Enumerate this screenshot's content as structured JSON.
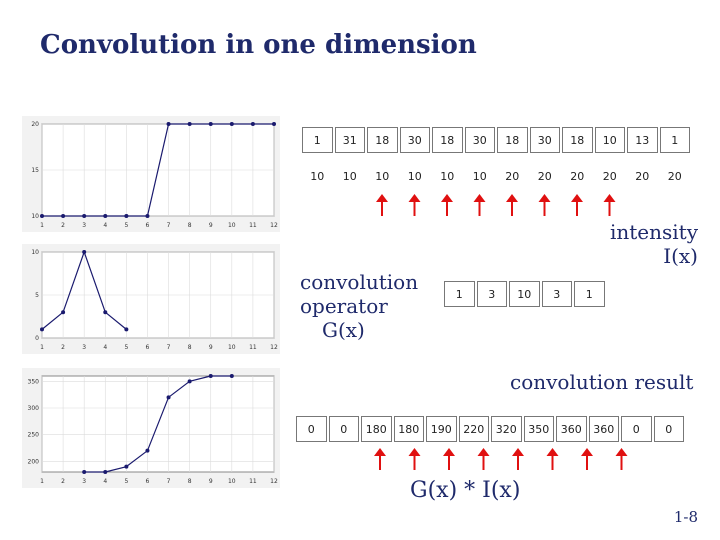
{
  "slide": {
    "title": "Convolution in one dimension",
    "page_number": "1-8"
  },
  "labels": {
    "intensity_line1": "intensity",
    "intensity_line2": "I(x)",
    "operator_line1": "convolution",
    "operator_line2": "operator",
    "operator_line3": "G(x)",
    "result_label": "convolution result",
    "result_formula": "G(x) * I(x)"
  },
  "intensity_row1": [
    "1",
    "31",
    "18",
    "30",
    "18",
    "30",
    "18",
    "30",
    "18",
    "10",
    "13",
    "1"
  ],
  "intensity_row2": [
    "10",
    "10",
    "10",
    "10",
    "10",
    "10",
    "20",
    "20",
    "20",
    "20",
    "20",
    "20"
  ],
  "operator_values": [
    "1",
    "3",
    "10",
    "3",
    "1"
  ],
  "result_values": [
    "0",
    "0",
    "180",
    "180",
    "190",
    "220",
    "320",
    "350",
    "360",
    "360",
    "0",
    "0"
  ],
  "colors": {
    "title": "#1f2a6b",
    "arrow": "#e01010",
    "plot_line": "#1a1a6e"
  },
  "chart_data": [
    {
      "type": "line",
      "x": [
        1,
        2,
        3,
        4,
        5,
        6,
        7,
        8,
        9,
        10,
        11,
        12
      ],
      "series": [
        {
          "values": [
            10,
            10,
            10,
            10,
            10,
            10,
            20,
            20,
            20,
            20,
            20,
            20
          ]
        }
      ],
      "xlim": [
        1,
        12
      ],
      "ylim": [
        10,
        20
      ],
      "yticks": [
        "10",
        "15",
        "20"
      ],
      "xticks": [
        "1",
        "2",
        "3",
        "4",
        "5",
        "6",
        "7",
        "8",
        "9",
        "10",
        "11",
        "12"
      ],
      "grid": true
    },
    {
      "type": "line",
      "x": [
        1,
        2,
        3,
        4,
        5
      ],
      "series": [
        {
          "values": [
            1,
            3,
            10,
            3,
            1
          ]
        }
      ],
      "xlim": [
        1,
        12
      ],
      "ylim": [
        0,
        10
      ],
      "yticks": [
        "0",
        "5",
        "10"
      ],
      "xticks": [
        "1",
        "2",
        "3",
        "4",
        "5",
        "6",
        "7",
        "8",
        "9",
        "10",
        "11",
        "12"
      ],
      "grid": true
    },
    {
      "type": "line",
      "x": [
        3,
        4,
        5,
        6,
        7,
        8,
        9,
        10
      ],
      "series": [
        {
          "values": [
            180,
            180,
            190,
            220,
            320,
            350,
            360,
            360
          ]
        }
      ],
      "xlim": [
        1,
        12
      ],
      "ylim": [
        180,
        360
      ],
      "yticks": [
        "200",
        "250",
        "300",
        "350"
      ],
      "xticks": [
        "1",
        "2",
        "3",
        "4",
        "5",
        "6",
        "7",
        "8",
        "9",
        "10",
        "11",
        "12"
      ],
      "grid": true
    }
  ]
}
